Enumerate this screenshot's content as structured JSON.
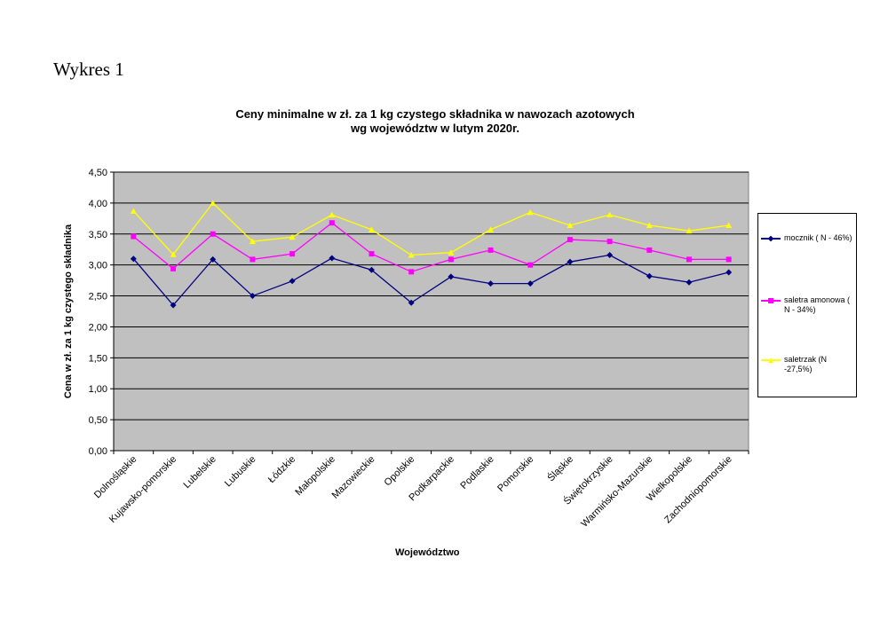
{
  "page": {
    "heading": "Wykres 1"
  },
  "chart_data": {
    "type": "line",
    "title_line1": "Ceny minimalne  w zł. za 1 kg czystego składnika w nawozach azotowych",
    "title_line2": "wg województw w lutym  2020r.",
    "xlabel": "Województwo",
    "ylabel": "Cena w zł. za 1 kg czystego składnika",
    "ylim": [
      0,
      4.5
    ],
    "yticks": [
      "0,00",
      "0,50",
      "1,00",
      "1,50",
      "2,00",
      "2,50",
      "3,00",
      "3,50",
      "4,00",
      "4,50"
    ],
    "grid": true,
    "legend_position": "right",
    "categories": [
      "Dolnośląskie",
      "Kujawsko-pomorskie",
      "Lubelskie",
      "Lubuskie",
      "Łódzkie",
      "Małopolskie",
      "Mazowieckie",
      "Opolskie",
      "Podkarpackie",
      "Podlaskie",
      "Pomorskie",
      "Śląskie",
      "Świętokrzyskie",
      "Warmińsko-Mazurskie",
      "Wielkopolskie",
      "Zachodniopomorskie"
    ],
    "series": [
      {
        "name": "mocznik ( N - 46%)",
        "color": "#000080",
        "marker": "diamond",
        "values": [
          3.1,
          2.35,
          3.09,
          2.5,
          2.74,
          3.11,
          2.92,
          2.39,
          2.81,
          2.7,
          2.7,
          3.05,
          3.16,
          2.82,
          2.72,
          2.88
        ]
      },
      {
        "name": "saletra amonowa ( N - 34%)",
        "color": "#ff00ff",
        "marker": "square",
        "values": [
          3.46,
          2.94,
          3.5,
          3.09,
          3.18,
          3.68,
          3.18,
          2.89,
          3.09,
          3.24,
          3.0,
          3.41,
          3.38,
          3.24,
          3.09,
          3.09
        ]
      },
      {
        "name": "saletrzak (N -27,5%)",
        "color": "#ffff00",
        "marker": "triangle",
        "values": [
          3.87,
          3.17,
          4.0,
          3.38,
          3.45,
          3.81,
          3.57,
          3.16,
          3.2,
          3.57,
          3.85,
          3.64,
          3.81,
          3.64,
          3.55,
          3.64
        ]
      }
    ]
  }
}
